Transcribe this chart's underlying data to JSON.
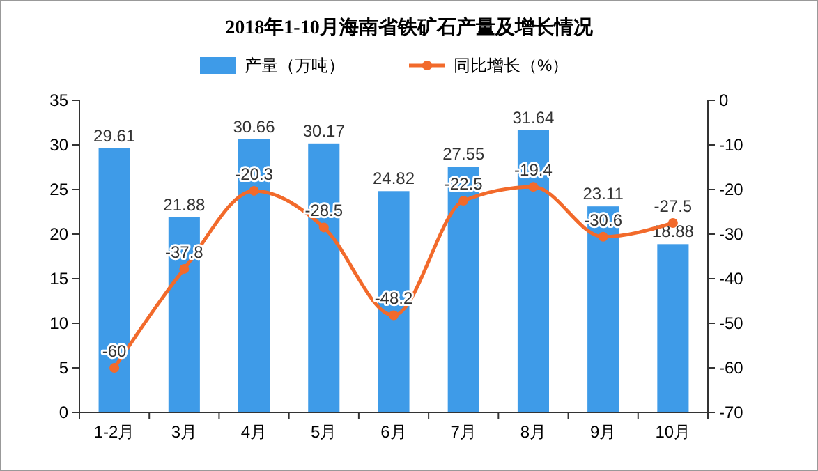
{
  "chart_data": {
    "type": "bar",
    "title": "2018年1-10月海南省铁矿石产量及增长情况",
    "categories": [
      "1-2月",
      "3月",
      "4月",
      "5月",
      "6月",
      "7月",
      "8月",
      "9月",
      "10月"
    ],
    "series": [
      {
        "name": "产量（万吨）",
        "color": "#3e9be8",
        "values": [
          29.61,
          21.88,
          30.66,
          30.17,
          24.82,
          27.55,
          31.64,
          23.11,
          18.88
        ]
      },
      {
        "name": "同比增长（%）",
        "type": "line",
        "axis": "y2",
        "color": "#f26a2b",
        "marker": "circle",
        "values": [
          -60,
          -37.8,
          -20.3,
          -28.5,
          -48.2,
          -22.5,
          -19.4,
          -30.6,
          -27.5
        ]
      }
    ],
    "ylim": [
      0,
      35
    ],
    "yticks": [
      0,
      5,
      10,
      15,
      20,
      25,
      30,
      35
    ],
    "y2lim": [
      -70,
      0
    ],
    "y2ticks": [
      -70,
      -60,
      -50,
      -40,
      -30,
      -20,
      -10,
      0
    ],
    "data_labels": true,
    "legend": "top",
    "grid": false
  }
}
